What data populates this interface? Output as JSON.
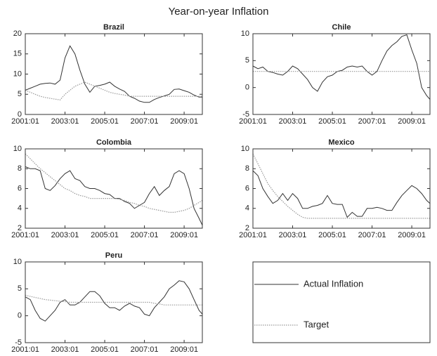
{
  "title": "Year-on-year Inflation",
  "legend": {
    "position": "lower right panel"
  },
  "chart_data": [
    {
      "type": "line",
      "title": "Brazil",
      "x": [
        "2001:01",
        "2001:04",
        "2001:07",
        "2001:10",
        "2002:01",
        "2002:04",
        "2002:07",
        "2002:10",
        "2003:01",
        "2003:04",
        "2003:07",
        "2003:10",
        "2004:01",
        "2004:04",
        "2004:07",
        "2004:10",
        "2005:01",
        "2005:04",
        "2005:07",
        "2005:10",
        "2006:01",
        "2006:04",
        "2006:07",
        "2006:10",
        "2007:01",
        "2007:04",
        "2007:07",
        "2007:10",
        "2008:01",
        "2008:04",
        "2008:07",
        "2008:10",
        "2009:01",
        "2009:04",
        "2009:07",
        "2009:10",
        "2009:12"
      ],
      "xlim": [
        "2001:01",
        "2009:12"
      ],
      "xticks": [
        "2001:01",
        "2003:01",
        "2005:01",
        "2007:01",
        "2009:01"
      ],
      "ylim": [
        0,
        20
      ],
      "yticks": [
        0,
        5,
        10,
        15,
        20
      ],
      "series": [
        {
          "name": "Actual Inflation",
          "color": "#333333",
          "linestyle": "solid",
          "values": [
            6,
            6.5,
            7,
            7.5,
            7.7,
            7.8,
            7.5,
            8.5,
            14,
            17,
            15,
            11,
            7.5,
            5.5,
            7,
            7.2,
            7.5,
            8,
            7,
            6.3,
            5.7,
            4.5,
            4,
            3.3,
            3,
            3,
            3.7,
            4.2,
            4.6,
            5,
            6.2,
            6.3,
            5.9,
            5.5,
            4.8,
            4.3,
            4.3
          ]
        },
        {
          "name": "Target",
          "color": "#999999",
          "linestyle": "dotted",
          "values": [
            6,
            5.5,
            5,
            4.5,
            4.2,
            4,
            3.8,
            3.6,
            5,
            6,
            7,
            7.5,
            8,
            7.5,
            7,
            6.5,
            6,
            5.5,
            5.2,
            5,
            4.8,
            4.5,
            4.5,
            4.5,
            4.5,
            4.5,
            4.5,
            4.5,
            4.5,
            4.5,
            4.5,
            4.5,
            4.5,
            4.5,
            4.5,
            4.5,
            4.5
          ]
        }
      ]
    },
    {
      "type": "line",
      "title": "Chile",
      "x": [
        "2001:01",
        "2001:04",
        "2001:07",
        "2001:10",
        "2002:01",
        "2002:04",
        "2002:07",
        "2002:10",
        "2003:01",
        "2003:04",
        "2003:07",
        "2003:10",
        "2004:01",
        "2004:04",
        "2004:07",
        "2004:10",
        "2005:01",
        "2005:04",
        "2005:07",
        "2005:10",
        "2006:01",
        "2006:04",
        "2006:07",
        "2006:10",
        "2007:01",
        "2007:04",
        "2007:07",
        "2007:10",
        "2008:01",
        "2008:04",
        "2008:07",
        "2008:10",
        "2009:01",
        "2009:04",
        "2009:07",
        "2009:10",
        "2009:12"
      ],
      "xlim": [
        "2001:01",
        "2009:12"
      ],
      "xticks": [
        "2001:01",
        "2003:01",
        "2005:01",
        "2007:01",
        "2009:01"
      ],
      "ylim": [
        -5,
        10
      ],
      "yticks": [
        -5,
        0,
        5,
        10
      ],
      "series": [
        {
          "color": "#333333",
          "linestyle": "solid",
          "values": [
            4,
            3.5,
            3.8,
            3,
            2.8,
            2.5,
            2.3,
            3,
            4,
            3.5,
            2.5,
            1.5,
            0,
            -0.7,
            1,
            2,
            2.3,
            3,
            3.2,
            3.8,
            4,
            3.8,
            4,
            3,
            2.3,
            3,
            5,
            6.8,
            7.8,
            8.5,
            9.5,
            9.8,
            7,
            4.5,
            0,
            -1.5,
            -2.2
          ]
        },
        {
          "color": "#999999",
          "linestyle": "dotted",
          "values": [
            3,
            3,
            3,
            3,
            3,
            3,
            3,
            3,
            3,
            3,
            3,
            3,
            3,
            3,
            3,
            3,
            3,
            3,
            3,
            3,
            3,
            3,
            3,
            3,
            3,
            3,
            3,
            3,
            3,
            3,
            3,
            3,
            3,
            3,
            3,
            3,
            3
          ]
        }
      ]
    },
    {
      "type": "line",
      "title": "Colombia",
      "x": [
        "2001:01",
        "2001:04",
        "2001:07",
        "2001:10",
        "2002:01",
        "2002:04",
        "2002:07",
        "2002:10",
        "2003:01",
        "2003:04",
        "2003:07",
        "2003:10",
        "2004:01",
        "2004:04",
        "2004:07",
        "2004:10",
        "2005:01",
        "2005:04",
        "2005:07",
        "2005:10",
        "2006:01",
        "2006:04",
        "2006:07",
        "2006:10",
        "2007:01",
        "2007:04",
        "2007:07",
        "2007:10",
        "2008:01",
        "2008:04",
        "2008:07",
        "2008:10",
        "2009:01",
        "2009:04",
        "2009:07",
        "2009:10",
        "2009:12"
      ],
      "xlim": [
        "2001:01",
        "2009:12"
      ],
      "xticks": [
        "2001:01",
        "2003:01",
        "2005:01",
        "2007:01",
        "2009:01"
      ],
      "ylim": [
        2,
        10
      ],
      "yticks": [
        2,
        4,
        6,
        8,
        10
      ],
      "series": [
        {
          "color": "#333333",
          "linestyle": "solid",
          "values": [
            8.2,
            8,
            8,
            7.8,
            6,
            5.8,
            6.3,
            7,
            7.5,
            7.8,
            7,
            6.8,
            6.2,
            6,
            6,
            5.8,
            5.5,
            5.4,
            5,
            5,
            4.7,
            4.5,
            4,
            4.3,
            4.6,
            5.5,
            6.2,
            5.3,
            5.8,
            6.2,
            7.5,
            7.8,
            7.5,
            6,
            4,
            3,
            2.3
          ]
        },
        {
          "color": "#999999",
          "linestyle": "dotted",
          "values": [
            9.5,
            9,
            8.5,
            8,
            7.6,
            7.2,
            6.8,
            6.4,
            6,
            5.8,
            5.5,
            5.3,
            5.2,
            5,
            5,
            5,
            5,
            5,
            5,
            4.9,
            4.8,
            4.6,
            4.5,
            4.3,
            4.2,
            4,
            3.9,
            3.8,
            3.7,
            3.6,
            3.6,
            3.7,
            3.8,
            4,
            4.3,
            4.6,
            4.8
          ]
        }
      ]
    },
    {
      "type": "line",
      "title": "Mexico",
      "x": [
        "2001:01",
        "2001:04",
        "2001:07",
        "2001:10",
        "2002:01",
        "2002:04",
        "2002:07",
        "2002:10",
        "2003:01",
        "2003:04",
        "2003:07",
        "2003:10",
        "2004:01",
        "2004:04",
        "2004:07",
        "2004:10",
        "2005:01",
        "2005:04",
        "2005:07",
        "2005:10",
        "2006:01",
        "2006:04",
        "2006:07",
        "2006:10",
        "2007:01",
        "2007:04",
        "2007:07",
        "2007:10",
        "2008:01",
        "2008:04",
        "2008:07",
        "2008:10",
        "2009:01",
        "2009:04",
        "2009:07",
        "2009:10",
        "2009:12"
      ],
      "xlim": [
        "2001:01",
        "2009:12"
      ],
      "xticks": [
        "2001:01",
        "2003:01",
        "2005:01",
        "2007:01",
        "2009:01"
      ],
      "ylim": [
        2,
        10
      ],
      "yticks": [
        2,
        4,
        6,
        8,
        10
      ],
      "series": [
        {
          "color": "#333333",
          "linestyle": "solid",
          "values": [
            7.8,
            7.3,
            6,
            5.2,
            4.5,
            4.8,
            5.5,
            4.8,
            5.5,
            5,
            4,
            4,
            4.2,
            4.3,
            4.5,
            5.3,
            4.5,
            4.4,
            4.4,
            3.1,
            3.6,
            3.2,
            3.2,
            4,
            4,
            4.1,
            4,
            3.8,
            3.8,
            4.6,
            5.3,
            5.8,
            6.3,
            6,
            5.5,
            4.8,
            4.5
          ]
        },
        {
          "color": "#999999",
          "linestyle": "dotted",
          "values": [
            9.5,
            8.5,
            7.5,
            6.5,
            5.8,
            5.2,
            4.7,
            4.2,
            3.8,
            3.4,
            3.1,
            3,
            3,
            3,
            3,
            3,
            3,
            3,
            3,
            3,
            3,
            3,
            3,
            3,
            3,
            3,
            3,
            3,
            3,
            3,
            3,
            3,
            3,
            3,
            3,
            3,
            3
          ]
        }
      ]
    },
    {
      "type": "line",
      "title": "Peru",
      "x": [
        "2001:01",
        "2001:04",
        "2001:07",
        "2001:10",
        "2002:01",
        "2002:04",
        "2002:07",
        "2002:10",
        "2003:01",
        "2003:04",
        "2003:07",
        "2003:10",
        "2004:01",
        "2004:04",
        "2004:07",
        "2004:10",
        "2005:01",
        "2005:04",
        "2005:07",
        "2005:10",
        "2006:01",
        "2006:04",
        "2006:07",
        "2006:10",
        "2007:01",
        "2007:04",
        "2007:07",
        "2007:10",
        "2008:01",
        "2008:04",
        "2008:07",
        "2008:10",
        "2009:01",
        "2009:04",
        "2009:07",
        "2009:10",
        "2009:12"
      ],
      "xlim": [
        "2001:01",
        "2009:12"
      ],
      "xticks": [
        "2001:01",
        "2003:01",
        "2005:01",
        "2007:01",
        "2009:01"
      ],
      "ylim": [
        -5,
        10
      ],
      "yticks": [
        -5,
        0,
        5,
        10
      ],
      "series": [
        {
          "color": "#333333",
          "linestyle": "solid",
          "values": [
            3.5,
            3,
            1,
            -0.5,
            -1,
            0,
            1,
            2.5,
            3,
            2,
            2,
            2.5,
            3.5,
            4.5,
            4.5,
            3.7,
            2.3,
            1.5,
            1.5,
            1,
            1.8,
            2.3,
            1.8,
            1.5,
            0.3,
            0,
            1.5,
            2.5,
            3.5,
            5,
            5.7,
            6.5,
            6.3,
            5,
            3,
            1,
            0.3
          ]
        },
        {
          "color": "#999999",
          "linestyle": "dotted",
          "values": [
            3.8,
            3.6,
            3.4,
            3.2,
            3,
            2.9,
            2.8,
            2.7,
            2.6,
            2.5,
            2.5,
            2.5,
            2.5,
            2.5,
            2.5,
            2.5,
            2.5,
            2.5,
            2.5,
            2.5,
            2.5,
            2.5,
            2.5,
            2.5,
            2.5,
            2.5,
            2.3,
            2.2,
            2,
            2,
            2,
            2,
            2,
            2,
            2,
            2,
            2
          ]
        }
      ]
    }
  ]
}
